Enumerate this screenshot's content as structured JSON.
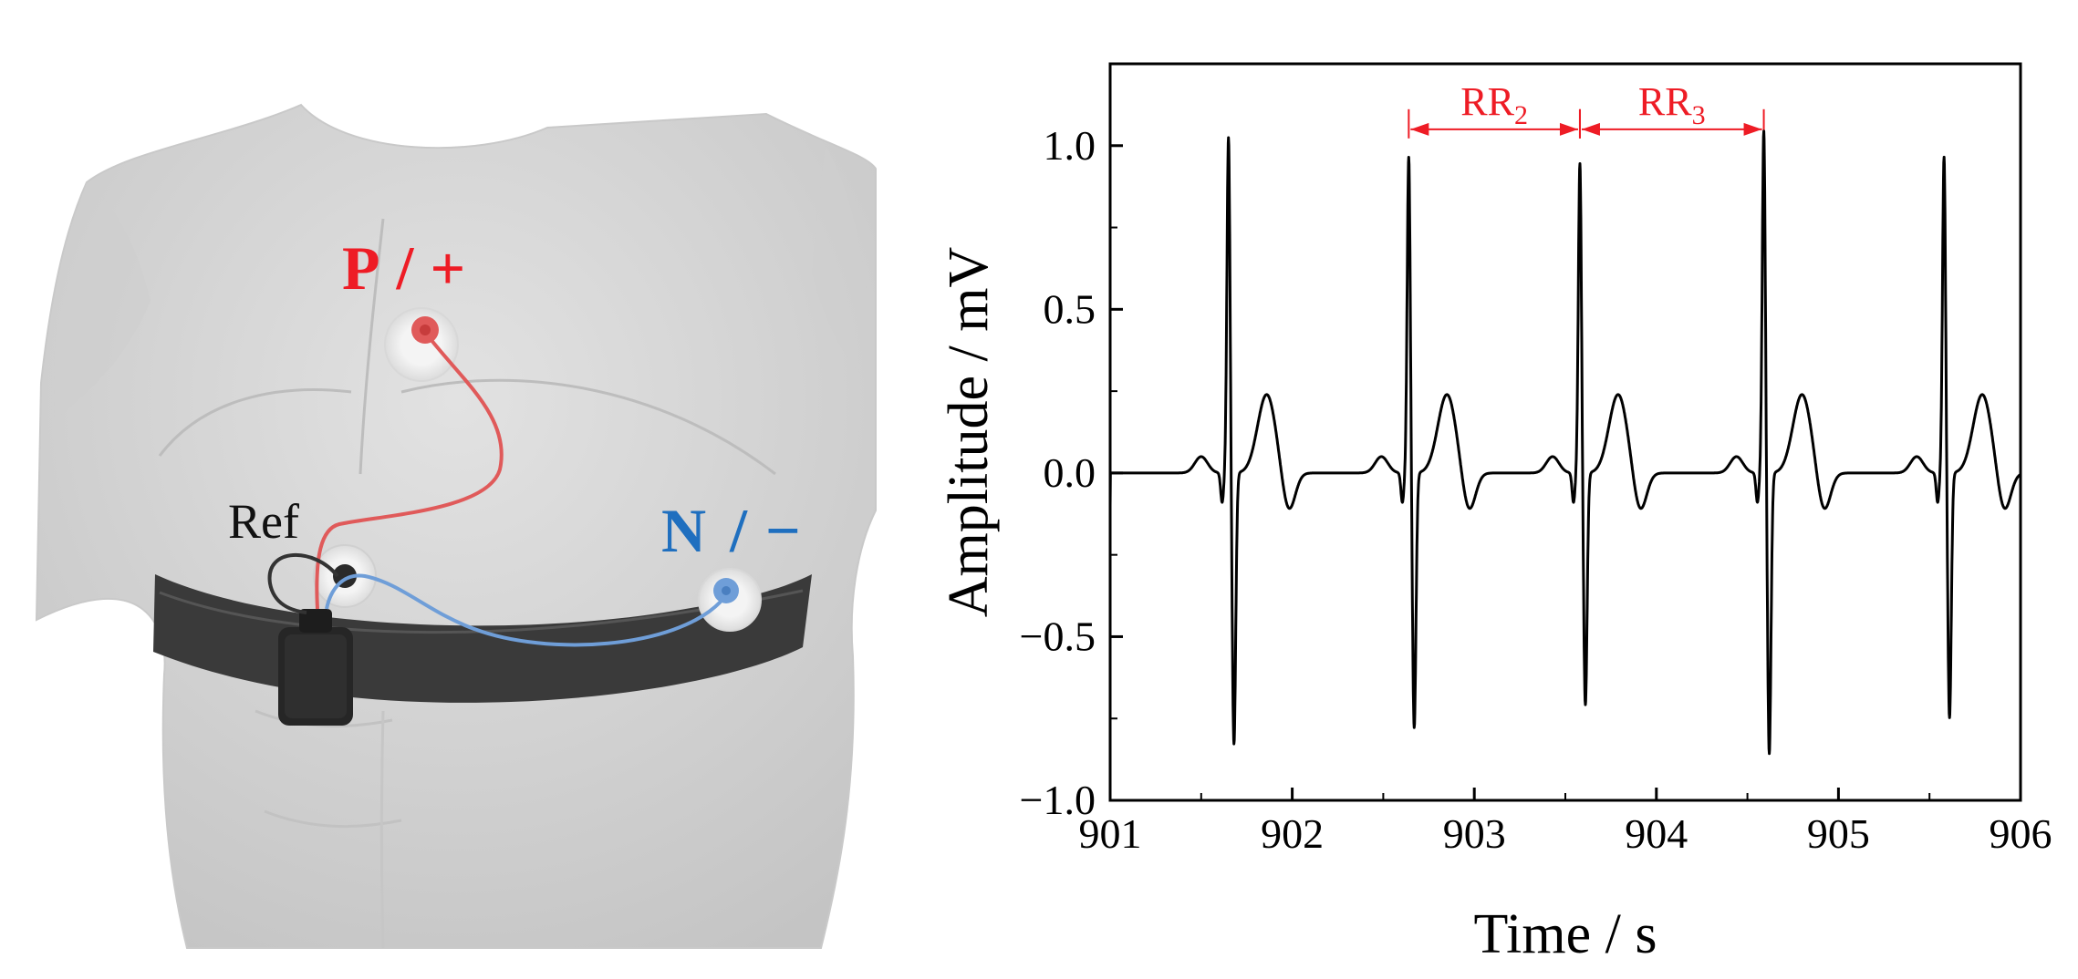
{
  "illustration": {
    "electrodes": [
      {
        "label_main": "P",
        "label_sep": "/",
        "label_sign": "+",
        "color": "#ee1c25"
      },
      {
        "label_main": "N",
        "label_sep": "/",
        "label_sign": "−",
        "color": "#1f6fbf"
      },
      {
        "label_main": "Ref",
        "color": "#111111"
      }
    ],
    "strap_color": "#3a3a3a",
    "skin_color": "#d6d6d6",
    "positive_lead_color": "#e05a5a",
    "negative_lead_color": "#6f9ed8"
  },
  "chart_data": {
    "type": "line",
    "title": "",
    "xlabel": "Time / s",
    "ylabel": "Amplitude / mV",
    "xlim": [
      901,
      906
    ],
    "ylim": [
      -1.0,
      1.25
    ],
    "xticks": [
      901,
      902,
      903,
      904,
      905,
      906
    ],
    "yticks": [
      -1.0,
      -0.5,
      0.0,
      0.5,
      1.0
    ],
    "xtick_labels": [
      "901",
      "902",
      "903",
      "904",
      "905",
      "906"
    ],
    "ytick_labels": [
      "−1.0",
      "−0.5",
      "0.0",
      "0.5",
      "1.0"
    ],
    "grid": false,
    "line_color": "#000000",
    "r_peaks": [
      {
        "t": 901.65,
        "r": 1.03,
        "s": -0.83
      },
      {
        "t": 902.64,
        "r": 0.97,
        "s": -0.78
      },
      {
        "t": 903.58,
        "r": 0.95,
        "s": -0.71
      },
      {
        "t": 904.59,
        "r": 1.05,
        "s": -0.86
      },
      {
        "t": 905.58,
        "r": 0.97,
        "s": -0.75
      }
    ],
    "annotations": [
      {
        "label": "RR",
        "subscript": "2",
        "from": 902.64,
        "to": 903.58,
        "y": 1.05,
        "color": "#ee1c25"
      },
      {
        "label": "RR",
        "subscript": "3",
        "from": 903.58,
        "to": 904.59,
        "y": 1.05,
        "color": "#ee1c25"
      }
    ]
  }
}
